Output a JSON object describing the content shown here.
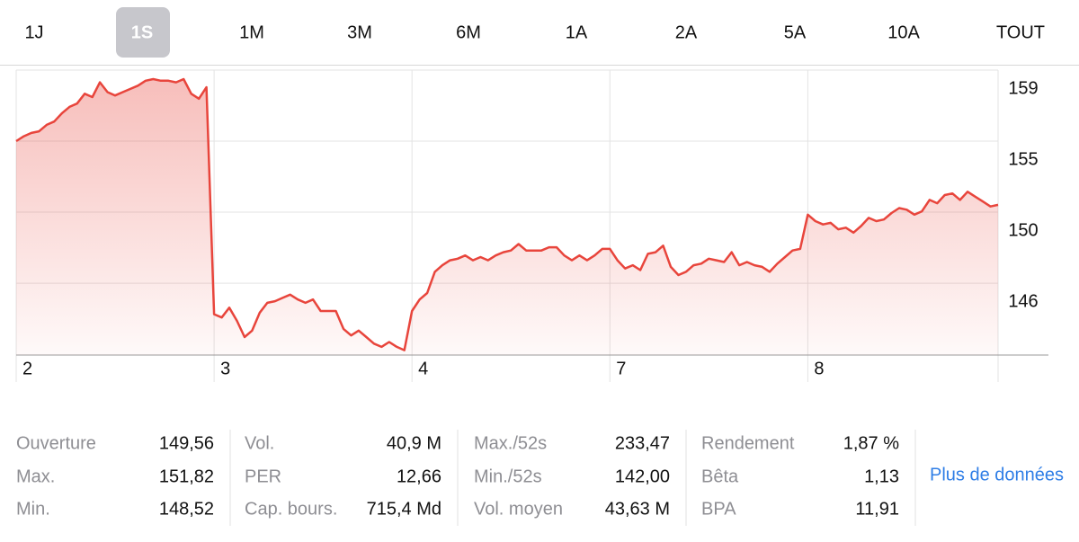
{
  "tabs": [
    "1J",
    "1S",
    "1M",
    "3M",
    "6M",
    "1A",
    "2A",
    "5A",
    "10A",
    "TOUT"
  ],
  "selected_tab_index": 1,
  "chart_data": {
    "type": "line",
    "color": "#e8453c",
    "values": [
      154.6,
      154.9,
      155.1,
      155.2,
      155.6,
      155.8,
      156.3,
      156.7,
      156.9,
      157.5,
      157.3,
      158.2,
      157.6,
      157.4,
      157.6,
      157.8,
      158.0,
      158.3,
      158.4,
      158.3,
      158.3,
      158.2,
      158.4,
      157.5,
      157.2,
      157.9,
      144.0,
      143.8,
      144.4,
      143.6,
      142.6,
      143.0,
      144.1,
      144.7,
      144.8,
      145.0,
      145.2,
      144.9,
      144.7,
      144.9,
      144.2,
      144.2,
      144.2,
      143.1,
      142.7,
      143.0,
      142.6,
      142.2,
      142.0,
      142.3,
      142.0,
      141.8,
      144.2,
      144.9,
      145.3,
      146.6,
      147.0,
      147.3,
      147.4,
      147.6,
      147.3,
      147.5,
      147.3,
      147.6,
      147.8,
      147.9,
      148.3,
      147.9,
      147.9,
      147.9,
      148.1,
      148.1,
      147.6,
      147.3,
      147.6,
      147.3,
      147.6,
      148.0,
      148.0,
      147.3,
      146.8,
      147.0,
      146.7,
      147.7,
      147.8,
      148.2,
      146.9,
      146.4,
      146.6,
      147.0,
      147.1,
      147.4,
      147.3,
      147.2,
      147.8,
      147.0,
      147.2,
      147.0,
      146.9,
      146.6,
      147.1,
      147.5,
      147.9,
      148.0,
      150.1,
      149.7,
      149.5,
      149.6,
      149.2,
      149.3,
      149.0,
      149.4,
      149.9,
      149.7,
      149.8,
      150.2,
      150.5,
      150.4,
      150.1,
      150.3,
      151.0,
      150.8,
      151.3,
      151.4,
      151.0,
      151.5,
      151.2,
      150.9,
      150.6,
      150.7
    ],
    "xlim": [
      0,
      129
    ],
    "xticks": [
      {
        "value": 0,
        "label": "2"
      },
      {
        "value": 26,
        "label": "3"
      },
      {
        "value": 52,
        "label": "4"
      },
      {
        "value": 78,
        "label": "7"
      },
      {
        "value": 104,
        "label": "8"
      }
    ],
    "ylim": [
      141.5,
      158.95
    ],
    "yticks": [
      {
        "value": 145.9,
        "label": "146"
      },
      {
        "value": 150.25,
        "label": "150"
      },
      {
        "value": 154.6,
        "label": "155"
      },
      {
        "value": 158.95,
        "label": "159"
      }
    ],
    "grid": true
  },
  "stats": [
    [
      {
        "label": "Ouverture",
        "value": "149,56"
      },
      {
        "label": "Max.",
        "value": "151,82"
      },
      {
        "label": "Min.",
        "value": "148,52"
      }
    ],
    [
      {
        "label": "Vol.",
        "value": "40,9 M"
      },
      {
        "label": "PER",
        "value": "12,66"
      },
      {
        "label": "Cap. bours.",
        "value": "715,4 Md"
      }
    ],
    [
      {
        "label": "Max./52s",
        "value": "233,47"
      },
      {
        "label": "Min./52s",
        "value": "142,00"
      },
      {
        "label": "Vol. moyen",
        "value": "43,63 M"
      }
    ],
    [
      {
        "label": "Rendement",
        "value": "1,87 %"
      },
      {
        "label": "Bêta",
        "value": "1,13"
      },
      {
        "label": "BPA",
        "value": "11,91"
      }
    ]
  ],
  "more_link": "Plus de données"
}
